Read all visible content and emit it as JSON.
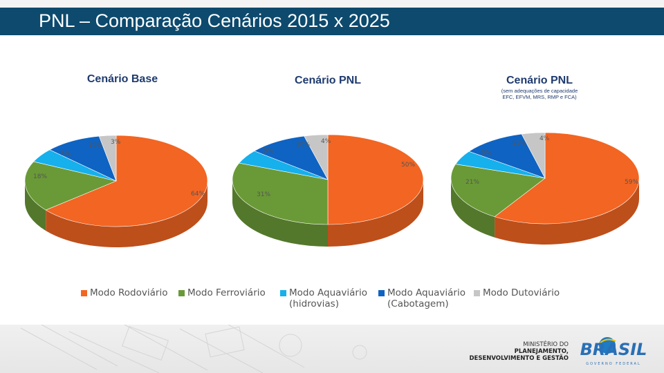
{
  "slide": {
    "title": "PNL – Comparação Cenários 2015 x 2025"
  },
  "chart_data": [
    {
      "type": "pie",
      "title": "Cenário Base",
      "subtitle": "",
      "slices": [
        {
          "label": "Modo Rodoviário",
          "value": 64,
          "value_label": "64%",
          "color": "#f26522"
        },
        {
          "label": "Modo Ferroviário",
          "value": 18,
          "value_label": "18%",
          "color": "#6a9a37"
        },
        {
          "label": "Modo Aquaviário (hidrovias)",
          "value": 5,
          "value_label": "5%",
          "color": "#16b0ec"
        },
        {
          "label": "Modo Aquaviário (Cabotagem)",
          "value": 10,
          "value_label": "10%",
          "color": "#0f63c2"
        },
        {
          "label": "Modo Dutoviário",
          "value": 3,
          "value_label": "3%",
          "color": "#c6c6c6"
        }
      ]
    },
    {
      "type": "pie",
      "title": "Cenário PNL",
      "subtitle": "",
      "slices": [
        {
          "label": "Modo Rodoviário",
          "value": 50,
          "value_label": "50%",
          "color": "#f26522"
        },
        {
          "label": "Modo Ferroviário",
          "value": 31,
          "value_label": "31%",
          "color": "#6a9a37"
        },
        {
          "label": "Modo Aquaviário (hidrovias)",
          "value": 5,
          "value_label": "5%",
          "color": "#16b0ec"
        },
        {
          "label": "Modo Aquaviário (Cabotagem)",
          "value": 10,
          "value_label": "10%",
          "color": "#0f63c2"
        },
        {
          "label": "Modo Dutoviário",
          "value": 4,
          "value_label": "4%",
          "color": "#c6c6c6"
        }
      ]
    },
    {
      "type": "pie",
      "title": "Cenário PNL",
      "subtitle": "(sem adequações de capacidade EFC, EFVM, MRS, RMP e FCA)",
      "subtitle_lines": [
        "(sem adequações de capacidade",
        "EFC, EFVM, MRS, RMP e FCA)"
      ],
      "slices": [
        {
          "label": "Modo Rodoviário",
          "value": 59,
          "value_label": "59%",
          "color": "#f26522"
        },
        {
          "label": "Modo Ferroviário",
          "value": 21,
          "value_label": "21%",
          "color": "#6a9a37"
        },
        {
          "label": "Modo Aquaviário (hidrovias)",
          "value": 5,
          "value_label": "5%",
          "color": "#16b0ec"
        },
        {
          "label": "Modo Aquaviário (Cabotagem)",
          "value": 11,
          "value_label": "11%",
          "color": "#0f63c2"
        },
        {
          "label": "Modo Dutoviário",
          "value": 4,
          "value_label": "4%",
          "color": "#c6c6c6"
        }
      ]
    }
  ],
  "legend": [
    {
      "line1": "Modo Rodoviário",
      "line2": "",
      "color": "#f26522"
    },
    {
      "line1": "Modo Ferroviário",
      "line2": "",
      "color": "#6a9a37"
    },
    {
      "line1": "Modo Aquaviário",
      "line2": "(hidrovias)",
      "color": "#16b0ec"
    },
    {
      "line1": "Modo Aquaviário",
      "line2": "(Cabotagem)",
      "color": "#0f63c2"
    },
    {
      "line1": "Modo Dutoviário",
      "line2": "",
      "color": "#c6c6c6"
    }
  ],
  "footer": {
    "ministry_line1": "MINISTÉRIO DO",
    "ministry_line2": "PLANEJAMENTO,",
    "ministry_line3": "DESENVOLVIMENTO E GESTÃO",
    "logo_text": "BRASIL",
    "logo_sub": "GOVERNO FEDERAL"
  }
}
